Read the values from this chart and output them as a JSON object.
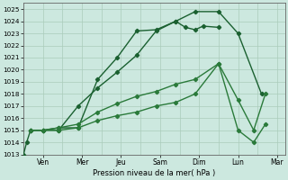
{
  "xlabel": "Pression niveau de la mer( hPa )",
  "background_color": "#cce8df",
  "grid_color": "#aaccbb",
  "line_color_dark": "#1a6030",
  "line_color_mid": "#2a7a3a",
  "ylim": [
    1013,
    1025.5
  ],
  "yticks": [
    1013,
    1014,
    1015,
    1016,
    1017,
    1018,
    1019,
    1020,
    1021,
    1022,
    1023,
    1024,
    1025
  ],
  "x_labels": [
    "Ven",
    "Mer",
    "Jeu",
    "Sam",
    "Dim",
    "Lun",
    "Mar"
  ],
  "figsize": [
    3.2,
    2.0
  ],
  "dpi": 100,
  "line1_x": [
    0.0,
    0.08,
    0.18,
    0.5,
    0.9,
    1.4,
    1.9,
    2.4,
    2.9,
    3.4,
    3.9,
    4.4,
    5.0,
    5.5,
    6.1
  ],
  "line1_y": [
    1013.0,
    1014.0,
    1015.0,
    1015.0,
    1015.0,
    1017.0,
    1018.5,
    1019.8,
    1021.2,
    1023.2,
    1024.0,
    1024.8,
    1024.8,
    1023.0,
    1018.0
  ],
  "line2_x": [
    0.18,
    0.5,
    0.9,
    1.4,
    1.9,
    2.4,
    2.9,
    3.4,
    3.9,
    4.15,
    4.4,
    4.6,
    5.0
  ],
  "line2_y": [
    1015.0,
    1015.0,
    1015.2,
    1015.2,
    1019.2,
    1021.0,
    1023.2,
    1023.3,
    1024.0,
    1023.5,
    1023.3,
    1023.6,
    1023.5
  ],
  "line3_x": [
    0.18,
    0.5,
    0.9,
    1.4,
    1.9,
    2.4,
    2.9,
    3.4,
    3.9,
    4.4,
    5.0,
    5.5,
    5.9,
    6.2
  ],
  "line3_y": [
    1015.0,
    1015.0,
    1015.2,
    1015.5,
    1016.5,
    1017.2,
    1017.8,
    1018.2,
    1018.8,
    1019.2,
    1020.5,
    1017.5,
    1015.0,
    1018.0
  ],
  "line4_x": [
    0.18,
    0.5,
    0.9,
    1.4,
    1.9,
    2.4,
    2.9,
    3.4,
    3.9,
    4.4,
    5.0,
    5.5,
    5.9,
    6.2
  ],
  "line4_y": [
    1015.0,
    1015.0,
    1015.0,
    1015.2,
    1015.8,
    1016.2,
    1016.5,
    1017.0,
    1017.3,
    1018.0,
    1020.5,
    1015.0,
    1014.0,
    1015.5
  ]
}
